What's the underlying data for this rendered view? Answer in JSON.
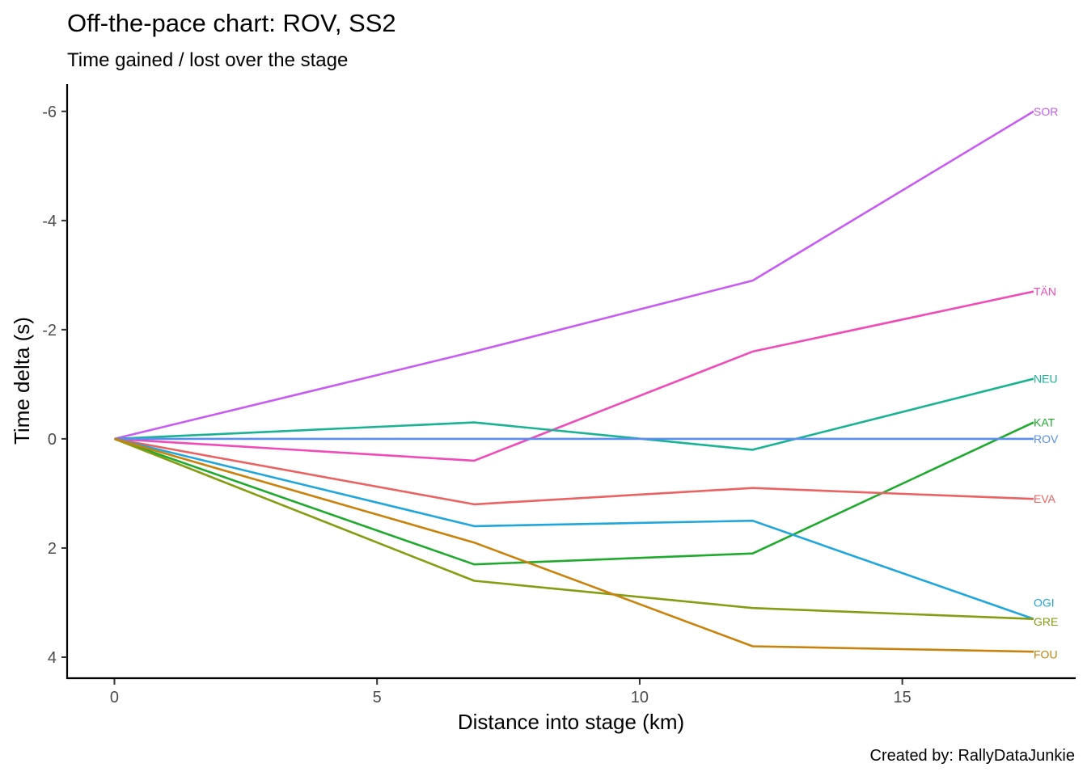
{
  "chart_data": {
    "type": "line",
    "title": "Off-the-pace chart: ROV, SS2",
    "subtitle": "Time gained / lost over the stage",
    "xlabel": "Distance into stage (km)",
    "ylabel": "Time delta (s)",
    "caption": "Created by: RallyDataJunkie",
    "xlim": [
      -0.9,
      18.3
    ],
    "ylim": [
      -6.5,
      4.4
    ],
    "y_reversed": true,
    "x_ticks": [
      0,
      5,
      10,
      15
    ],
    "x_tick_labels": [
      "0",
      "5",
      "10",
      "15"
    ],
    "y_ticks": [
      -6,
      -4,
      -2,
      0,
      2,
      4
    ],
    "y_tick_labels": [
      "-6",
      "-4",
      "-2",
      "0",
      "2",
      "4"
    ],
    "grid": false,
    "legend": "none",
    "x": [
      0,
      6.85,
      12.15,
      17.5
    ],
    "series": [
      {
        "name": "SOR",
        "color": "#c75cf5",
        "values": [
          0,
          -1.6,
          -2.9,
          -6.0
        ]
      },
      {
        "name": "TÄN",
        "color": "#f04bb8",
        "values": [
          0,
          0.4,
          -1.6,
          -2.7
        ]
      },
      {
        "name": "NEU",
        "color": "#19b394",
        "values": [
          0,
          -0.3,
          0.2,
          -1.1
        ]
      },
      {
        "name": "KAT",
        "color": "#1faa2e",
        "values": [
          0,
          2.3,
          2.1,
          -0.3
        ]
      },
      {
        "name": "ROV",
        "color": "#5a8cf2",
        "values": [
          0,
          0,
          0,
          0
        ]
      },
      {
        "name": "EVA",
        "color": "#ea6262",
        "values": [
          0,
          1.2,
          0.9,
          1.1
        ]
      },
      {
        "name": "OGI",
        "color": "#1fa6dc",
        "values": [
          0,
          1.6,
          1.5,
          3.3
        ]
      },
      {
        "name": "GRE",
        "color": "#869c12",
        "values": [
          0,
          2.6,
          3.1,
          3.3
        ]
      },
      {
        "name": "FOU",
        "color": "#c9820c",
        "values": [
          0,
          1.9,
          3.8,
          3.9
        ]
      }
    ],
    "end_labels": [
      {
        "text": "SOR",
        "color": "#c75cf5",
        "y": -6.0
      },
      {
        "text": "TÄN",
        "color": "#f04bb8",
        "y": -2.7
      },
      {
        "text": "NEU",
        "color": "#19b394",
        "y": -1.1
      },
      {
        "text": "KAT",
        "color": "#1faa2e",
        "y": -0.3
      },
      {
        "text": "ROV",
        "color": "#5a8cf2",
        "y": 0
      },
      {
        "text": "EVA",
        "color": "#ea6262",
        "y": 1.1
      },
      {
        "text": "OGI",
        "color": "#1fa6dc",
        "y": 3.0
      },
      {
        "text": "GRE",
        "color": "#869c12",
        "y": 3.35
      },
      {
        "text": "FOU",
        "color": "#c9820c",
        "y": 3.95
      }
    ]
  }
}
